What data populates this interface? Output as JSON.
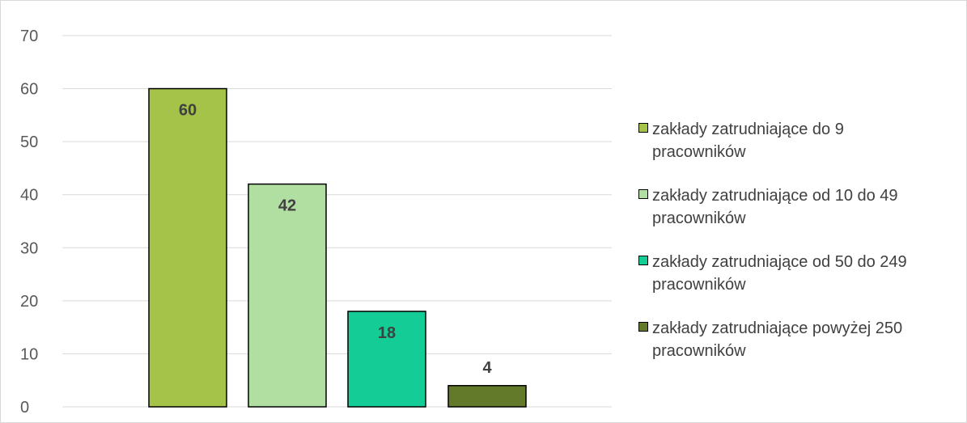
{
  "chart_data": {
    "type": "bar",
    "categories": [
      "zakłady zatrudniające do 9 pracowników",
      "zakłady zatrudniające od 10 do 49 pracowników",
      "zakłady zatrudniające od 50 do 249 pracowników",
      "zakłady zatrudniające powyżej 250 pracowników"
    ],
    "values": [
      60,
      42,
      18,
      4
    ],
    "colors": [
      "#a5c249",
      "#b0dfa1",
      "#14cc96",
      "#637a2a"
    ],
    "data_labels": [
      "60",
      "42",
      "18",
      "4"
    ],
    "ylim": [
      0,
      70
    ],
    "y_ticks": [
      "0",
      "10",
      "20",
      "30",
      "40",
      "50",
      "60",
      "70"
    ],
    "grid": true,
    "legend_position": "right",
    "legend": [
      {
        "line1": "zakłady zatrudniające do 9",
        "line2": "pracowników"
      },
      {
        "line1": "zakłady zatrudniające od 10 do 49",
        "line2": "pracowników"
      },
      {
        "line1": "zakłady zatrudniające od 50 do 249",
        "line2": "pracowników"
      },
      {
        "line1": "zakłady zatrudniające powyżej 250",
        "line2": "pracowników"
      }
    ]
  }
}
